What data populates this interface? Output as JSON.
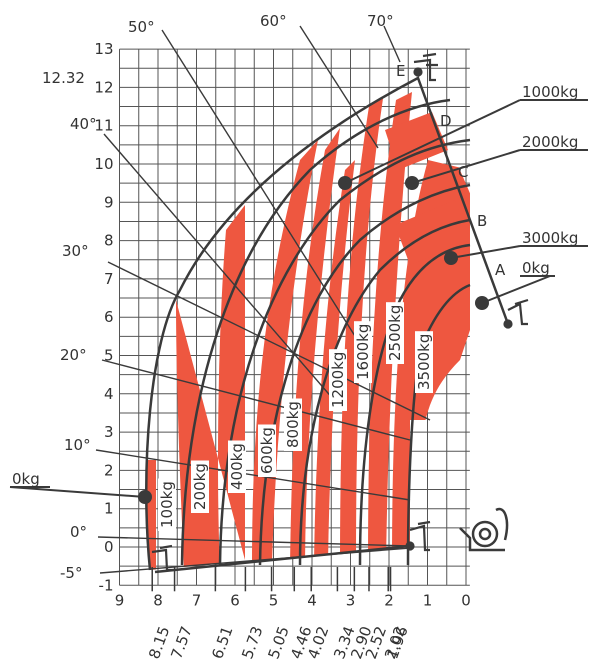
{
  "colors": {
    "load": "#ee5740",
    "grid": "#555555",
    "line": "#3a3a3a",
    "text": "#333333"
  },
  "chart_data": {
    "type": "load-chart",
    "xlim": [
      9,
      -0.1
    ],
    "ylim": [
      -1,
      13
    ],
    "x_ticks": [
      9,
      8,
      7,
      6,
      5,
      4,
      3,
      2,
      1,
      0
    ],
    "y_ticks": [
      13,
      12,
      11,
      10,
      9,
      8,
      7,
      6,
      5,
      4,
      3,
      2,
      1,
      0,
      -1
    ],
    "max_height_label": "12.32",
    "max_height": 12.32,
    "reach_labels": [
      "8.15",
      "7.57",
      "6.51",
      "5.73",
      "5.05",
      "4.46",
      "4.02",
      "3.34",
      "2.90",
      "2.52",
      "2.02",
      "1.96"
    ],
    "reach_values": [
      8.15,
      7.57,
      6.51,
      5.73,
      5.05,
      4.46,
      4.02,
      3.34,
      2.9,
      2.52,
      2.02,
      1.96
    ],
    "angles": [
      "70°",
      "60°",
      "50°",
      "40°",
      "30°",
      "20°",
      "10°",
      "0°",
      "-5°"
    ],
    "extension_points": [
      "A",
      "B",
      "C",
      "D",
      "E"
    ],
    "load_zones": [
      {
        "label": "100kg",
        "x_range": [
          8.15,
          7.57
        ]
      },
      {
        "label": "200kg",
        "x_range": [
          7.57,
          6.51
        ]
      },
      {
        "label": "400kg",
        "x_range": [
          6.51,
          5.73
        ]
      },
      {
        "label": "600kg",
        "x_range": [
          5.73,
          5.05
        ]
      },
      {
        "label": "800kg",
        "x_range": [
          5.05,
          4.46
        ]
      },
      {
        "label": "1200kg",
        "x_range": [
          4.02,
          3.34
        ]
      },
      {
        "label": "1600kg",
        "x_range": [
          3.34,
          2.9
        ]
      },
      {
        "label": "2500kg",
        "x_range": [
          2.52,
          2.02
        ]
      },
      {
        "label": "3500kg",
        "x_range": [
          2.02,
          1.96
        ]
      }
    ],
    "callouts": [
      "1000kg",
      "2000kg",
      "3000kg",
      "0kg",
      "0kg"
    ]
  }
}
